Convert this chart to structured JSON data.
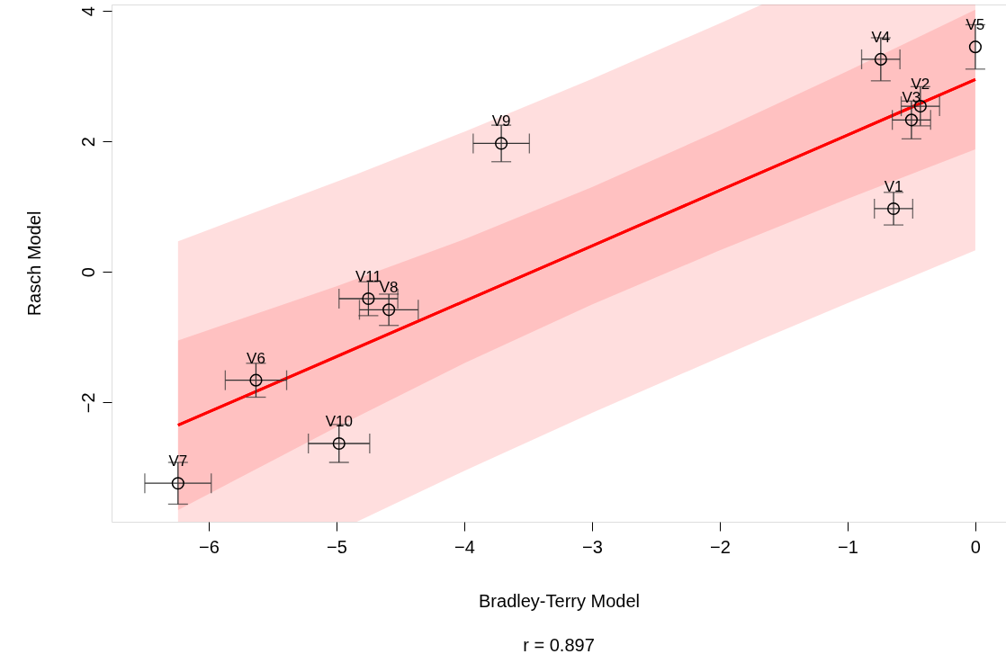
{
  "chart_data": {
    "type": "scatter",
    "xlabel": "Bradley-Terry Model",
    "ylabel": "Rasch Model",
    "xlim": [
      -6.76,
      0.24
    ],
    "ylim": [
      -3.83,
      4.1
    ],
    "xticks": [
      -6,
      -5,
      -4,
      -3,
      -2,
      -1,
      0
    ],
    "yticks": [
      -2,
      0,
      2,
      4
    ],
    "grid": false,
    "series": [
      {
        "type": "line",
        "color": "#ff0000",
        "x": [
          -6.24,
          -4.84,
          -4,
          -3,
          -2,
          -1.67,
          -1,
          0
        ],
        "values": [
          -2.35,
          -1.16,
          -0.45,
          0.4,
          1.25,
          1.53,
          2.1,
          2.95
        ],
        "lower": [
          -3.83,
          -3.83,
          -3.05,
          -2.16,
          -1.31,
          -1.03,
          -0.48,
          0.33
        ],
        "upper": [
          0.47,
          1.5,
          2.15,
          2.96,
          3.81,
          4.1,
          4.1,
          4.1
        ]
      },
      {
        "type": "line",
        "color": "#ff0000",
        "x": [
          -6.24,
          -5,
          -4,
          -3,
          -2,
          -1,
          0
        ],
        "values": [
          -2.35,
          -1.3,
          -0.45,
          0.4,
          1.25,
          2.1,
          2.95
        ],
        "lower": [
          -3.65,
          -2.38,
          -1.4,
          -0.5,
          0.33,
          1.12,
          1.88
        ],
        "upper": [
          -1.05,
          -0.22,
          0.5,
          1.3,
          2.17,
          3.08,
          4.02
        ]
      },
      {
        "type": "scatter",
        "color": "#000000",
        "marker": "circle",
        "x": [
          -0.64,
          -0.43,
          -0.5,
          -0.74,
          0.0,
          -5.63,
          -6.24,
          -4.59,
          -3.71,
          -4.98,
          -4.75
        ],
        "values": [
          0.97,
          2.54,
          2.33,
          3.26,
          3.45,
          -1.66,
          -3.24,
          -0.58,
          1.97,
          -2.63,
          -0.41
        ],
        "errors": [
          0.25,
          0.3,
          0.29,
          0.33,
          0.34,
          0.26,
          0.32,
          0.24,
          0.28,
          0.29,
          0.26
        ],
        "xerrors": [
          0.15,
          0.15,
          0.15,
          0.15,
          null,
          0.24,
          0.26,
          0.23,
          0.22,
          0.24,
          0.23
        ]
      }
    ],
    "annotations": [
      {
        "text": "V1",
        "x": -0.64,
        "y": 0.97
      },
      {
        "text": "V2",
        "x": -0.43,
        "y": 2.54
      },
      {
        "text": "V3",
        "x": -0.5,
        "y": 2.33
      },
      {
        "text": "V4",
        "x": -0.74,
        "y": 3.26
      },
      {
        "text": "V5",
        "x": 0.0,
        "y": 3.45
      },
      {
        "text": "V6",
        "x": -5.63,
        "y": -1.66
      },
      {
        "text": "V7",
        "x": -6.24,
        "y": -3.24
      },
      {
        "text": "V8",
        "x": -4.59,
        "y": -0.58
      },
      {
        "text": "V9",
        "x": -3.71,
        "y": 1.97
      },
      {
        "text": "V10",
        "x": -4.98,
        "y": -2.63
      },
      {
        "text": "V11",
        "x": -4.75,
        "y": -0.41
      },
      "r = 0.897"
    ]
  }
}
